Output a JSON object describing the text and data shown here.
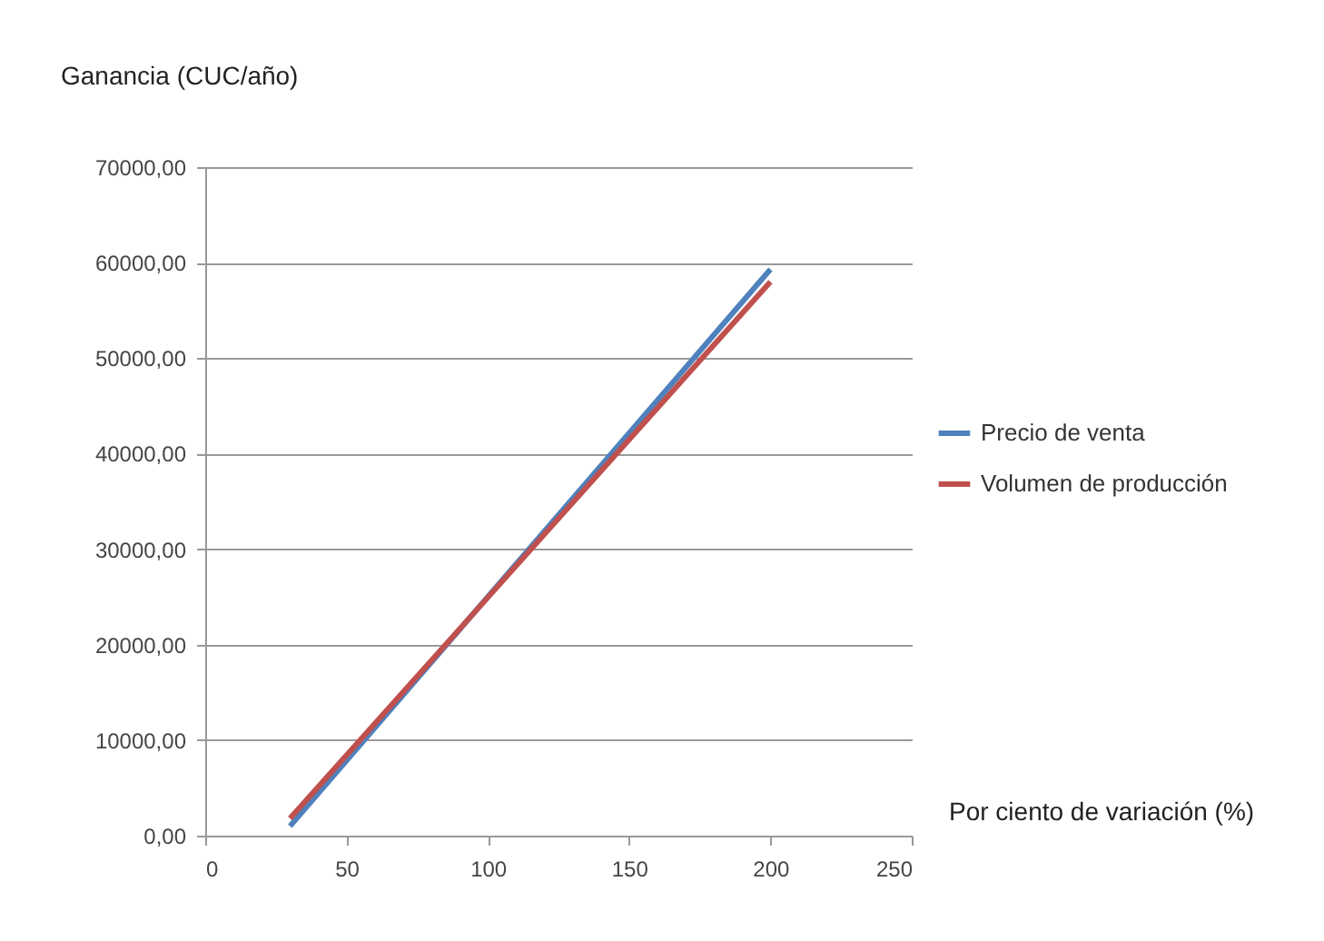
{
  "chart_data": {
    "type": "line",
    "xlabel": "Por ciento de variación (%)",
    "ylabel": "Ganancia (CUC/año)",
    "x": [
      30,
      200
    ],
    "series": [
      {
        "name": "Precio de venta",
        "color": "#4f81bd",
        "values": [
          1000,
          59300
        ]
      },
      {
        "name": "Volumen de producción",
        "color": "#c0504d",
        "values": [
          1800,
          58000
        ]
      }
    ],
    "xlim": [
      0,
      250
    ],
    "xticks": [
      0,
      50,
      100,
      150,
      200,
      250
    ],
    "ylim": [
      0,
      70000
    ],
    "yticks": [
      {
        "value": 0,
        "label": "0,00"
      },
      {
        "value": 10000,
        "label": "10000,00"
      },
      {
        "value": 20000,
        "label": "20000,00"
      },
      {
        "value": 30000,
        "label": "30000,00"
      },
      {
        "value": 40000,
        "label": "40000,00"
      },
      {
        "value": 50000,
        "label": "50000,00"
      },
      {
        "value": 60000,
        "label": "60000,00"
      },
      {
        "value": 70000,
        "label": "70000,00"
      }
    ],
    "grid": "y",
    "legend": "right",
    "marker": "none",
    "line_style": "solid"
  }
}
